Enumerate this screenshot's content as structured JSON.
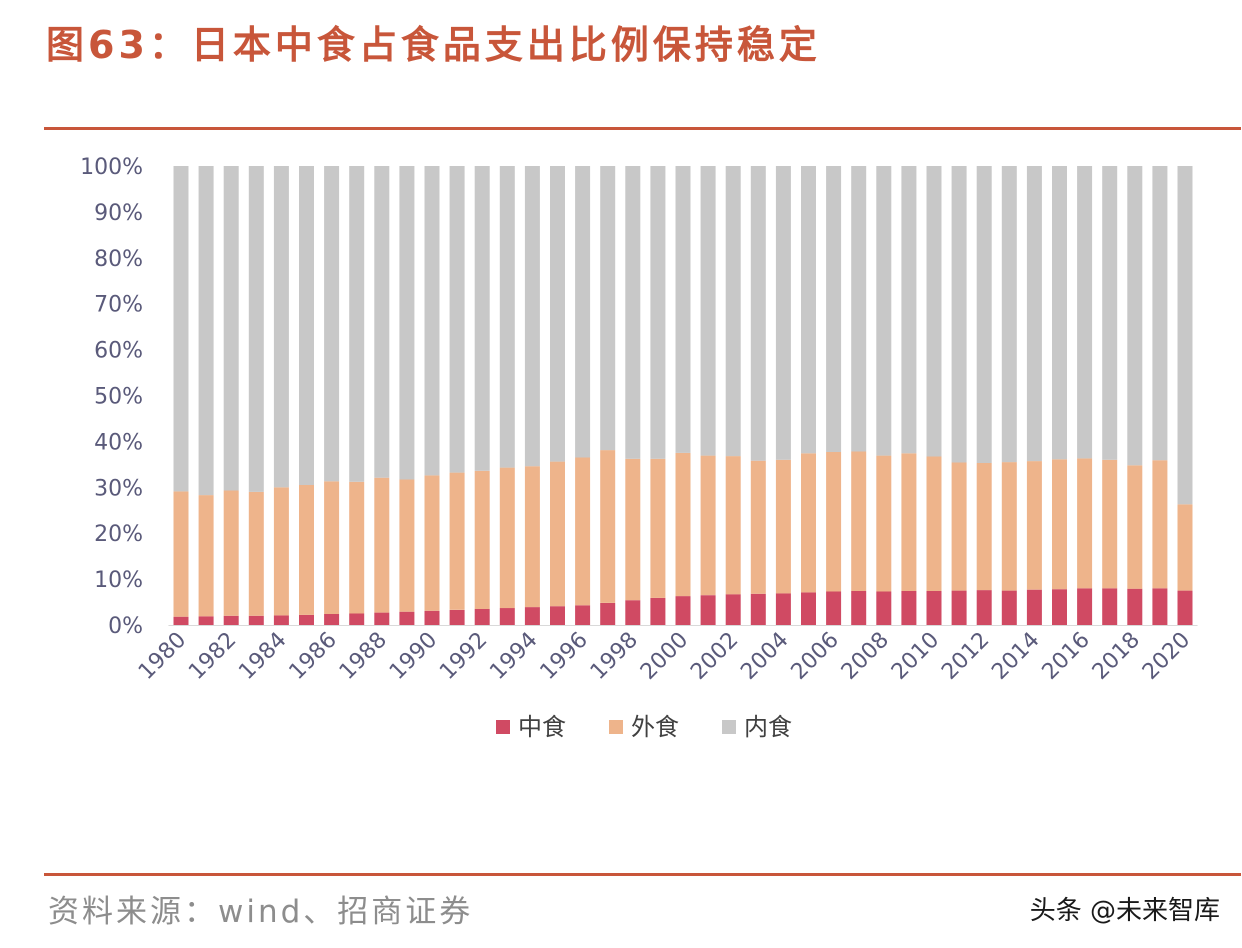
{
  "header": {
    "title": "图63：日本中食占食品支出比例保持稳定"
  },
  "footer": {
    "source": "资料来源：wind、招商证券",
    "watermark": "头条 @未来智库"
  },
  "colors": {
    "accent": "#c8563a",
    "zhongshi": "#d04a63",
    "waishi": "#eeb48b",
    "neishi": "#c8c8c8"
  },
  "chart_data": {
    "type": "bar",
    "stacked": true,
    "percent": true,
    "title": "",
    "xlabel": "",
    "ylabel": "",
    "ylim": [
      0,
      100
    ],
    "yticks": [
      "0%",
      "10%",
      "20%",
      "30%",
      "40%",
      "50%",
      "60%",
      "70%",
      "80%",
      "90%",
      "100%"
    ],
    "categories": [
      "1980",
      "1981",
      "1982",
      "1983",
      "1984",
      "1985",
      "1986",
      "1987",
      "1988",
      "1989",
      "1990",
      "1991",
      "1992",
      "1993",
      "1994",
      "1995",
      "1996",
      "1997",
      "1998",
      "1999",
      "2000",
      "2001",
      "2002",
      "2003",
      "2004",
      "2005",
      "2006",
      "2007",
      "2008",
      "2009",
      "2010",
      "2011",
      "2012",
      "2013",
      "2014",
      "2015",
      "2016",
      "2017",
      "2018",
      "2019",
      "2020"
    ],
    "xtick_labels": [
      "1980",
      "1982",
      "1984",
      "1986",
      "1988",
      "1990",
      "1992",
      "1994",
      "1996",
      "1998",
      "2000",
      "2002",
      "2004",
      "2006",
      "2008",
      "2010",
      "2012",
      "2014",
      "2016",
      "2018",
      "2020"
    ],
    "legend_position": "bottom",
    "series": [
      {
        "name": "中食",
        "color": "#d04a63",
        "values": [
          1.8,
          1.9,
          2.0,
          2.0,
          2.1,
          2.2,
          2.4,
          2.5,
          2.7,
          2.9,
          3.1,
          3.3,
          3.5,
          3.7,
          3.9,
          4.1,
          4.3,
          4.8,
          5.4,
          5.9,
          6.3,
          6.5,
          6.7,
          6.8,
          6.9,
          7.1,
          7.3,
          7.4,
          7.3,
          7.4,
          7.4,
          7.5,
          7.6,
          7.5,
          7.7,
          7.8,
          8.0,
          8.0,
          7.9,
          8.0,
          7.5
        ]
      },
      {
        "name": "外食",
        "color": "#eeb48b",
        "values": [
          27.3,
          26.4,
          27.3,
          27.0,
          27.9,
          28.3,
          28.9,
          28.7,
          29.4,
          28.8,
          29.5,
          29.9,
          30.1,
          30.6,
          30.7,
          31.5,
          32.2,
          33.3,
          30.8,
          30.3,
          31.2,
          30.4,
          30.1,
          29.0,
          29.1,
          30.3,
          30.4,
          30.4,
          29.6,
          30.0,
          29.3,
          27.9,
          27.7,
          28.0,
          28.0,
          28.3,
          28.3,
          28.0,
          26.9,
          27.9,
          18.8
        ]
      },
      {
        "name": "内食",
        "color": "#c8c8c8",
        "values": [
          70.9,
          71.7,
          70.7,
          71.0,
          70.0,
          69.5,
          68.7,
          68.8,
          67.9,
          68.3,
          67.4,
          66.8,
          66.4,
          65.7,
          65.4,
          64.4,
          63.5,
          61.9,
          63.8,
          63.8,
          62.5,
          63.1,
          63.2,
          64.2,
          64.0,
          62.6,
          62.3,
          62.2,
          63.1,
          62.6,
          63.3,
          64.6,
          64.7,
          64.5,
          64.3,
          63.9,
          63.7,
          64.0,
          65.2,
          64.1,
          73.7
        ]
      }
    ]
  }
}
